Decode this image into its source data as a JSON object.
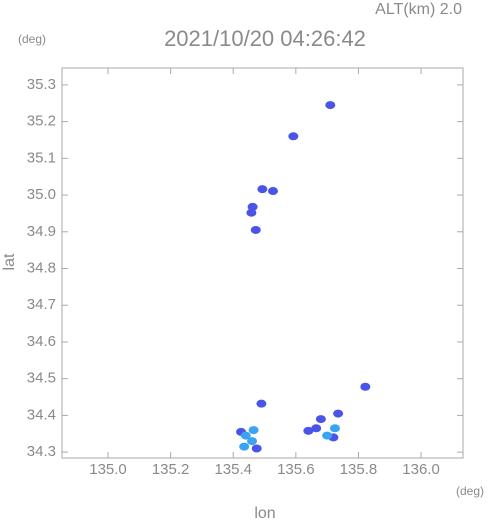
{
  "chart_data": {
    "type": "scatter",
    "title": "2021/10/20 04:26:42",
    "altitude_label": "ALT(km) 2.0",
    "y_unit": "(deg)",
    "x_unit": "(deg)",
    "x_label": "lon",
    "y_label": "lat",
    "xlim": [
      134.853,
      136.134
    ],
    "ylim": [
      34.284,
      35.346
    ],
    "xticks": [
      {
        "value": 135,
        "label": "135.0"
      },
      135.2,
      135.4,
      135.6,
      135.8,
      {
        "value": 136,
        "label": "136.0"
      }
    ],
    "yticks": [
      35.3,
      35.2,
      35.1,
      {
        "value": 35,
        "label": "35.0"
      },
      34.9,
      34.8,
      34.7,
      34.6,
      34.5,
      34.4,
      34.3
    ],
    "series": [
      {
        "color": "#4a55e8",
        "x": [
          135.71,
          135.592,
          135.493,
          135.527,
          135.462,
          135.458,
          135.472,
          135.822,
          135.49,
          135.425,
          135.475,
          135.64,
          135.68,
          135.735,
          135.72,
          135.665
        ],
        "values": [
          35.245,
          35.16,
          35.016,
          35.011,
          34.968,
          34.952,
          34.905,
          34.478,
          34.432,
          34.355,
          34.31,
          34.358,
          34.39,
          34.405,
          34.34,
          34.365
        ]
      },
      {
        "color": "#3ba4f0",
        "x": [
          135.44,
          135.46,
          135.435,
          135.465,
          135.7,
          135.725
        ],
        "values": [
          34.345,
          34.33,
          34.315,
          34.36,
          34.345,
          34.365
        ]
      }
    ]
  }
}
